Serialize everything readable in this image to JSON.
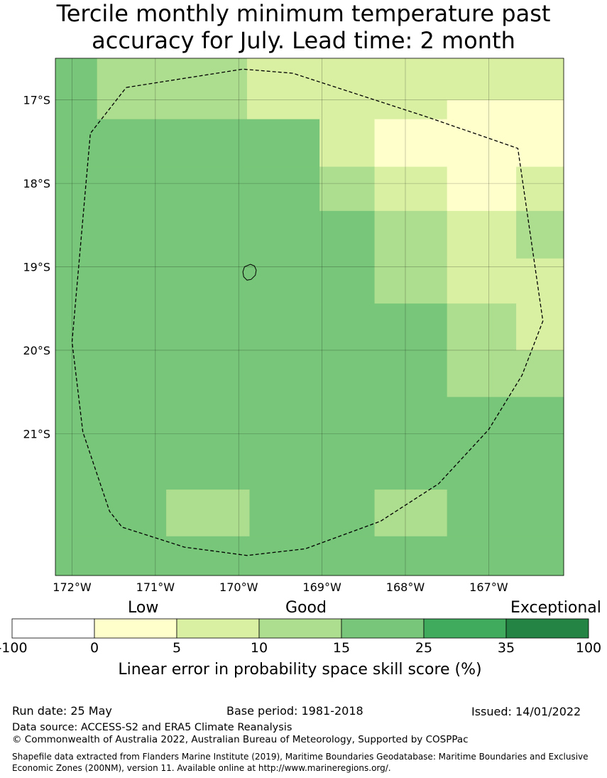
{
  "title": {
    "line1": "Tercile monthly minimum temperature past",
    "line2": "accuracy for July. Lead time: 2 month"
  },
  "map": {
    "lat_labels": [
      "17°S",
      "18°S",
      "19°S",
      "20°S",
      "21°S"
    ],
    "lon_labels": [
      "172°W",
      "171°W",
      "170°W",
      "169°W",
      "168°W",
      "167°W"
    ],
    "lat_range": [
      -22.7,
      -16.5
    ],
    "lon_range": [
      -172.2,
      -166.1
    ],
    "cell_grid": {
      "rows": [
        {
          "lat": [
            -16.5,
            -17.0
          ],
          "pieces": [
            [
              -172.2,
              -171.7,
              4
            ],
            [
              -171.7,
              -169.9,
              3
            ],
            [
              -169.9,
              -166.1,
              2
            ]
          ]
        },
        {
          "lat": [
            -17.0,
            -17.23
          ],
          "pieces": [
            [
              -172.2,
              -171.7,
              4
            ],
            [
              -171.7,
              -169.9,
              3
            ],
            [
              -169.9,
              -167.5,
              2
            ],
            [
              -167.5,
              -166.1,
              1
            ]
          ]
        },
        {
          "lat": [
            -17.23,
            -17.8
          ],
          "pieces": [
            [
              -172.2,
              -169.03,
              4
            ],
            [
              -169.03,
              -168.37,
              2
            ],
            [
              -168.37,
              -166.1,
              1
            ]
          ]
        },
        {
          "lat": [
            -17.8,
            -18.33
          ],
          "pieces": [
            [
              -172.2,
              -169.03,
              4
            ],
            [
              -169.03,
              -168.37,
              3
            ],
            [
              -168.37,
              -167.5,
              2
            ],
            [
              -167.5,
              -166.67,
              1
            ],
            [
              -166.67,
              -166.1,
              2
            ]
          ]
        },
        {
          "lat": [
            -18.33,
            -18.9
          ],
          "pieces": [
            [
              -172.2,
              -168.37,
              4
            ],
            [
              -168.37,
              -167.5,
              3
            ],
            [
              -167.5,
              -166.67,
              2
            ],
            [
              -166.67,
              -166.1,
              3
            ]
          ]
        },
        {
          "lat": [
            -18.9,
            -19.44
          ],
          "pieces": [
            [
              -172.2,
              -168.37,
              4
            ],
            [
              -168.37,
              -167.5,
              3
            ],
            [
              -167.5,
              -166.1,
              2
            ]
          ]
        },
        {
          "lat": [
            -19.44,
            -20.0
          ],
          "pieces": [
            [
              -172.2,
              -167.5,
              4
            ],
            [
              -167.5,
              -166.67,
              3
            ],
            [
              -166.67,
              -166.1,
              2
            ]
          ]
        },
        {
          "lat": [
            -20.0,
            -20.56
          ],
          "pieces": [
            [
              -172.2,
              -167.5,
              4
            ],
            [
              -167.5,
              -166.1,
              3
            ]
          ]
        },
        {
          "lat": [
            -20.56,
            -21.67
          ],
          "pieces": [
            [
              -172.2,
              -166.1,
              4
            ]
          ]
        },
        {
          "lat": [
            -21.67,
            -22.23
          ],
          "pieces": [
            [
              -172.2,
              -170.87,
              4
            ],
            [
              -170.87,
              -169.87,
              3
            ],
            [
              -169.87,
              -168.37,
              4
            ],
            [
              -168.37,
              -167.5,
              3
            ],
            [
              -167.5,
              -166.1,
              4
            ]
          ]
        },
        {
          "lat": [
            -22.23,
            -22.7
          ],
          "pieces": [
            [
              -172.2,
              -166.1,
              4
            ]
          ]
        }
      ]
    },
    "eez_boundary": [
      [
        -171.35,
        -16.85
      ],
      [
        -169.95,
        -16.63
      ],
      [
        -169.35,
        -16.68
      ],
      [
        -167.75,
        -17.2
      ],
      [
        -166.65,
        -17.58
      ],
      [
        -166.35,
        -19.65
      ],
      [
        -166.6,
        -20.3
      ],
      [
        -167.0,
        -20.95
      ],
      [
        -167.6,
        -21.6
      ],
      [
        -168.3,
        -22.05
      ],
      [
        -169.2,
        -22.38
      ],
      [
        -169.9,
        -22.46
      ],
      [
        -170.65,
        -22.36
      ],
      [
        -171.4,
        -22.12
      ],
      [
        -171.55,
        -21.93
      ],
      [
        -171.87,
        -20.98
      ],
      [
        -172.0,
        -19.9
      ],
      [
        -171.78,
        -17.4
      ],
      [
        -171.35,
        -16.85
      ]
    ],
    "island_outline": [
      [
        -169.86,
        -18.97
      ],
      [
        -169.81,
        -18.99
      ],
      [
        -169.79,
        -19.04
      ],
      [
        -169.8,
        -19.1
      ],
      [
        -169.85,
        -19.15
      ],
      [
        -169.9,
        -19.16
      ],
      [
        -169.94,
        -19.12
      ],
      [
        -169.95,
        -19.06
      ],
      [
        -169.93,
        -19.0
      ],
      [
        -169.86,
        -18.97
      ]
    ]
  },
  "colorbar": {
    "category_words": [
      "Low",
      "Good",
      "Exceptional"
    ],
    "ticks": [
      "-100",
      "0",
      "5",
      "10",
      "15",
      "25",
      "35",
      "100"
    ],
    "colors": [
      "#ffffff",
      "#ffffcc",
      "#d9f0a3",
      "#addd8e",
      "#78c679",
      "#41ab5d",
      "#238443"
    ],
    "label": "Linear error in probability space skill score (%)"
  },
  "footer": {
    "run_date": "Run date: 25 May",
    "base_period": "Base period: 1981-2018",
    "issued": "Issued: 14/01/2022",
    "data_source": "Data source: ACCESS-S2 and ERA5 Climate Reanalysis",
    "copyright": "© Commonwealth of Australia 2022, Australian Bureau of Meteorology, Supported by COSPPac",
    "shapefile_note": "Shapefile data extracted from Flanders Marine Institute (2019), Maritime Boundaries Geodatabase: Maritime Boundaries and Exclusive Economic Zones (200NM), version 11. Available online at http://www.marineregions.org/."
  }
}
